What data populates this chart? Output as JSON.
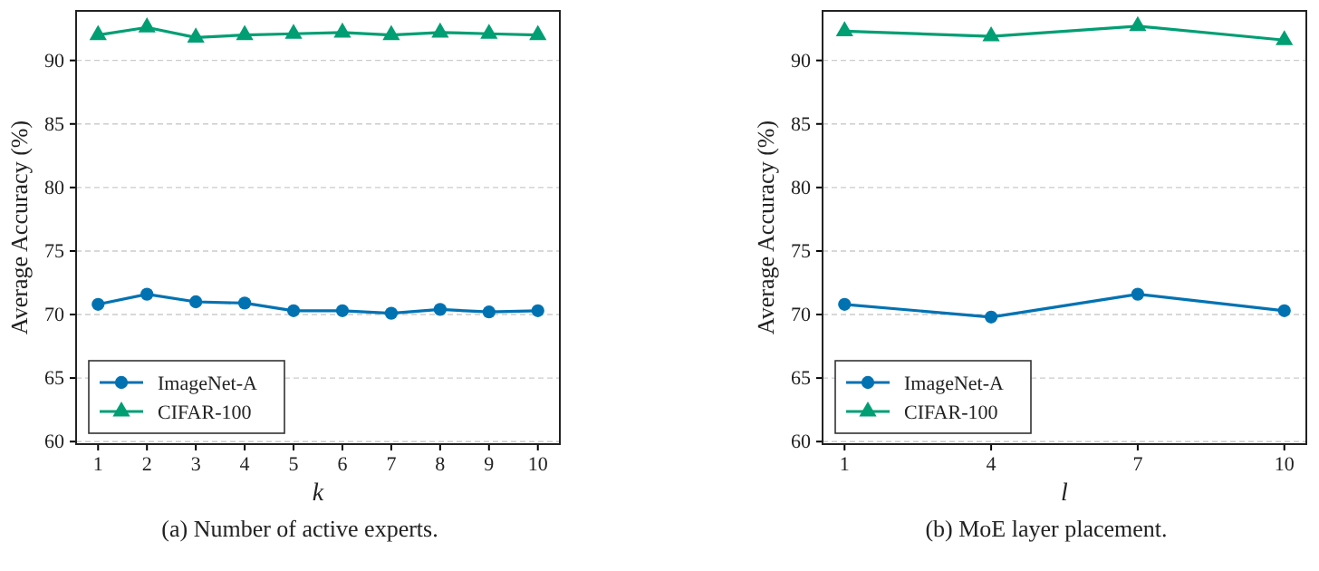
{
  "chart_data": [
    {
      "type": "line",
      "xlabel": "k",
      "ylabel": "Average Accuracy (%)",
      "x": [
        1,
        2,
        3,
        4,
        5,
        6,
        7,
        8,
        9,
        10
      ],
      "xlim": [
        0.55,
        10.45
      ],
      "xticks": [
        1,
        2,
        3,
        4,
        5,
        6,
        7,
        8,
        9,
        10
      ],
      "ylim": [
        59.8,
        93.9
      ],
      "yticks": [
        60,
        65,
        70,
        75,
        80,
        85,
        90
      ],
      "grid": "y",
      "legend": "bottom left",
      "line_style": "solid",
      "annotations": [
        "(a) Number of active experts."
      ],
      "series": [
        {
          "name": "ImageNet-A",
          "color": "#0072b2",
          "marker": "circle",
          "values": [
            70.8,
            71.6,
            71.0,
            70.9,
            70.3,
            70.3,
            70.1,
            70.4,
            70.2,
            70.3
          ]
        },
        {
          "name": "CIFAR-100",
          "color": "#009e73",
          "marker": "triangle",
          "values": [
            92.0,
            92.6,
            91.8,
            92.0,
            92.1,
            92.2,
            92.0,
            92.2,
            92.1,
            92.0
          ]
        }
      ]
    },
    {
      "type": "line",
      "xlabel": "l",
      "ylabel": "Average Accuracy (%)",
      "x": [
        1,
        4,
        7,
        10
      ],
      "xlim": [
        0.55,
        10.45
      ],
      "xticks": [
        1,
        4,
        7,
        10
      ],
      "ylim": [
        59.8,
        93.9
      ],
      "yticks": [
        60,
        65,
        70,
        75,
        80,
        85,
        90
      ],
      "grid": "y",
      "legend": "bottom left",
      "line_style": "solid",
      "annotations": [
        "(b) MoE layer placement."
      ],
      "series": [
        {
          "name": "ImageNet-A",
          "color": "#0072b2",
          "marker": "circle",
          "values": [
            70.8,
            69.8,
            71.6,
            70.3
          ]
        },
        {
          "name": "CIFAR-100",
          "color": "#009e73",
          "marker": "triangle",
          "values": [
            92.3,
            91.9,
            92.7,
            91.6
          ]
        }
      ]
    }
  ]
}
